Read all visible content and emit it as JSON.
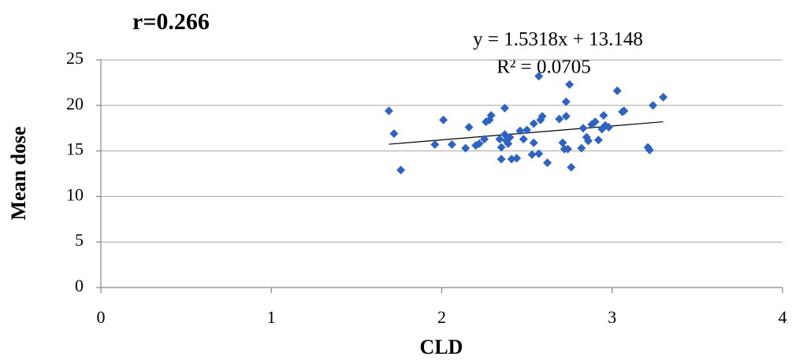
{
  "chart_data": {
    "type": "scatter",
    "title": "r=0.266",
    "x_label": "CLD",
    "y_label": "Mean dose",
    "color": "#2f63c0",
    "xlim": [
      0,
      4
    ],
    "ylim": [
      0,
      25
    ],
    "xticks": [
      0,
      1,
      2,
      3,
      4
    ],
    "yticks": [
      0,
      5,
      10,
      15,
      20,
      25
    ],
    "grid": true,
    "x": [
      1.69,
      1.72,
      1.76,
      1.96,
      2.01,
      2.06,
      2.14,
      2.16,
      2.2,
      2.22,
      2.25,
      2.26,
      2.28,
      2.29,
      2.34,
      2.35,
      2.35,
      2.37,
      2.37,
      2.38,
      2.39,
      2.4,
      2.41,
      2.44,
      2.46,
      2.48,
      2.5,
      2.53,
      2.54,
      2.54,
      2.57,
      2.57,
      2.58,
      2.59,
      2.62,
      2.69,
      2.71,
      2.72,
      2.73,
      2.73,
      2.74,
      2.75,
      2.76,
      2.82,
      2.83,
      2.85,
      2.86,
      2.88,
      2.9,
      2.92,
      2.94,
      2.95,
      2.96,
      2.98,
      3.03,
      3.06,
      3.07,
      3.21,
      3.22,
      3.24,
      3.3
    ],
    "values": [
      19.4,
      16.9,
      12.9,
      15.7,
      18.4,
      15.7,
      15.3,
      17.6,
      15.6,
      15.8,
      16.3,
      18.2,
      18.4,
      18.9,
      16.3,
      15.4,
      14.1,
      19.7,
      16.8,
      16.1,
      15.8,
      16.5,
      14.1,
      14.2,
      17.2,
      16.3,
      17.3,
      14.6,
      15.9,
      18.0,
      14.7,
      23.2,
      18.4,
      18.8,
      13.7,
      18.5,
      15.9,
      15.2,
      20.4,
      18.8,
      15.2,
      22.3,
      13.2,
      15.3,
      17.5,
      16.5,
      16.1,
      17.9,
      18.2,
      16.2,
      17.4,
      18.9,
      17.8,
      17.6,
      21.6,
      19.3,
      19.4,
      15.4,
      15.1,
      20.0,
      20.9
    ],
    "trendline": {
      "slope": 1.5318,
      "intercept": 13.148,
      "equation": "y = 1.5318x + 13.148",
      "r_squared": 0.0705,
      "r_squared_label": "R² = 0.0705"
    }
  }
}
